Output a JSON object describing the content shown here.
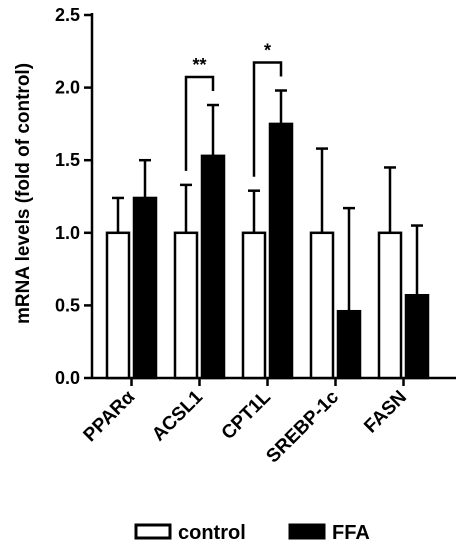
{
  "chart_data": {
    "type": "bar",
    "ylabel": "mRNA levels (fold of control)",
    "ylim": [
      0,
      2.5
    ],
    "yticks": [
      "0.0",
      "0.5",
      "1.0",
      "1.5",
      "2.0",
      "2.5"
    ],
    "categories": [
      "PPARα",
      "ACSL1",
      "CPT1L",
      "SREBP-1c",
      "FASN"
    ],
    "series": [
      {
        "name": "control",
        "values": [
          1.0,
          1.0,
          1.0,
          1.0,
          1.0
        ],
        "errors": [
          0.24,
          0.33,
          0.29,
          0.58,
          0.45
        ],
        "color": "#ffffff"
      },
      {
        "name": "FFA",
        "values": [
          1.24,
          1.53,
          1.75,
          0.46,
          0.57
        ],
        "errors": [
          0.26,
          0.35,
          0.23,
          0.71,
          0.48
        ],
        "color": "#000000"
      }
    ],
    "significance": [
      {
        "category": "ACSL1",
        "label": "**"
      },
      {
        "category": "CPT1L",
        "label": "*"
      }
    ],
    "legend_position": "bottom"
  }
}
